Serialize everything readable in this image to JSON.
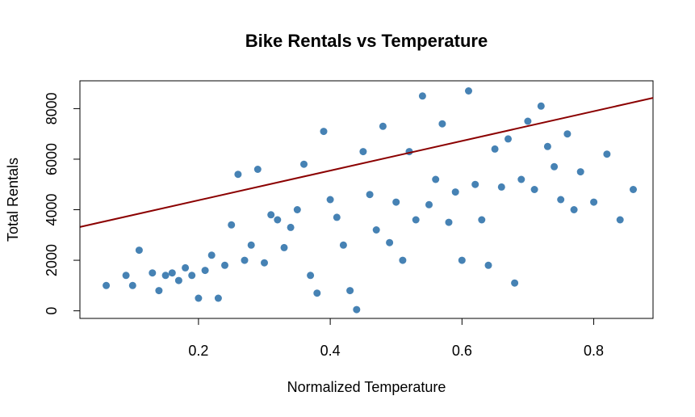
{
  "chart_data": {
    "type": "scatter",
    "title": "Bike Rentals vs Temperature",
    "xlabel": "Normalized Temperature",
    "ylabel": "Total Rentals",
    "xlim": [
      0.02,
      0.89
    ],
    "ylim": [
      -300,
      9100
    ],
    "x_ticks": [
      0.2,
      0.4,
      0.6,
      0.8
    ],
    "y_ticks": [
      0,
      2000,
      4000,
      6000,
      8000
    ],
    "x_tick_labels": [
      "0.2",
      "0.4",
      "0.6",
      "0.8"
    ],
    "y_tick_labels": [
      "0",
      "2000",
      "4000",
      "6000",
      "8000"
    ],
    "grid": false,
    "legend": "none",
    "point_color": "#4682B4",
    "fit_line_color": "#8B0000",
    "fit_line": {
      "intercept": 3200,
      "slope": 5870
    },
    "series": [
      {
        "points": [
          [
            0.06,
            1000
          ],
          [
            0.09,
            1400
          ],
          [
            0.1,
            1000
          ],
          [
            0.11,
            2400
          ],
          [
            0.13,
            1500
          ],
          [
            0.14,
            800
          ],
          [
            0.15,
            1400
          ],
          [
            0.16,
            1500
          ],
          [
            0.17,
            1200
          ],
          [
            0.18,
            1700
          ],
          [
            0.19,
            1400
          ],
          [
            0.2,
            500
          ],
          [
            0.21,
            1600
          ],
          [
            0.22,
            2200
          ],
          [
            0.23,
            500
          ],
          [
            0.24,
            1800
          ],
          [
            0.25,
            3400
          ],
          [
            0.26,
            5400
          ],
          [
            0.27,
            2000
          ],
          [
            0.28,
            2600
          ],
          [
            0.29,
            5600
          ],
          [
            0.3,
            1900
          ],
          [
            0.31,
            3800
          ],
          [
            0.32,
            3600
          ],
          [
            0.33,
            2500
          ],
          [
            0.34,
            3300
          ],
          [
            0.35,
            4000
          ],
          [
            0.36,
            5800
          ],
          [
            0.37,
            1400
          ],
          [
            0.38,
            700
          ],
          [
            0.39,
            7100
          ],
          [
            0.4,
            4400
          ],
          [
            0.41,
            3700
          ],
          [
            0.42,
            2600
          ],
          [
            0.43,
            800
          ],
          [
            0.44,
            50
          ],
          [
            0.45,
            6300
          ],
          [
            0.46,
            4600
          ],
          [
            0.47,
            3200
          ],
          [
            0.48,
            7300
          ],
          [
            0.49,
            2700
          ],
          [
            0.5,
            4300
          ],
          [
            0.51,
            2000
          ],
          [
            0.52,
            6300
          ],
          [
            0.53,
            3600
          ],
          [
            0.54,
            8500
          ],
          [
            0.55,
            4200
          ],
          [
            0.56,
            5200
          ],
          [
            0.57,
            7400
          ],
          [
            0.58,
            3500
          ],
          [
            0.59,
            4700
          ],
          [
            0.6,
            2000
          ],
          [
            0.61,
            8700
          ],
          [
            0.62,
            5000
          ],
          [
            0.63,
            3600
          ],
          [
            0.64,
            1800
          ],
          [
            0.65,
            6400
          ],
          [
            0.66,
            4900
          ],
          [
            0.67,
            6800
          ],
          [
            0.68,
            1100
          ],
          [
            0.69,
            5200
          ],
          [
            0.7,
            7500
          ],
          [
            0.71,
            4800
          ],
          [
            0.72,
            8100
          ],
          [
            0.73,
            6500
          ],
          [
            0.74,
            5700
          ],
          [
            0.75,
            4400
          ],
          [
            0.76,
            7000
          ],
          [
            0.77,
            4000
          ],
          [
            0.78,
            5500
          ],
          [
            0.8,
            4300
          ],
          [
            0.82,
            6200
          ],
          [
            0.84,
            3600
          ],
          [
            0.86,
            4800
          ]
        ]
      }
    ]
  }
}
